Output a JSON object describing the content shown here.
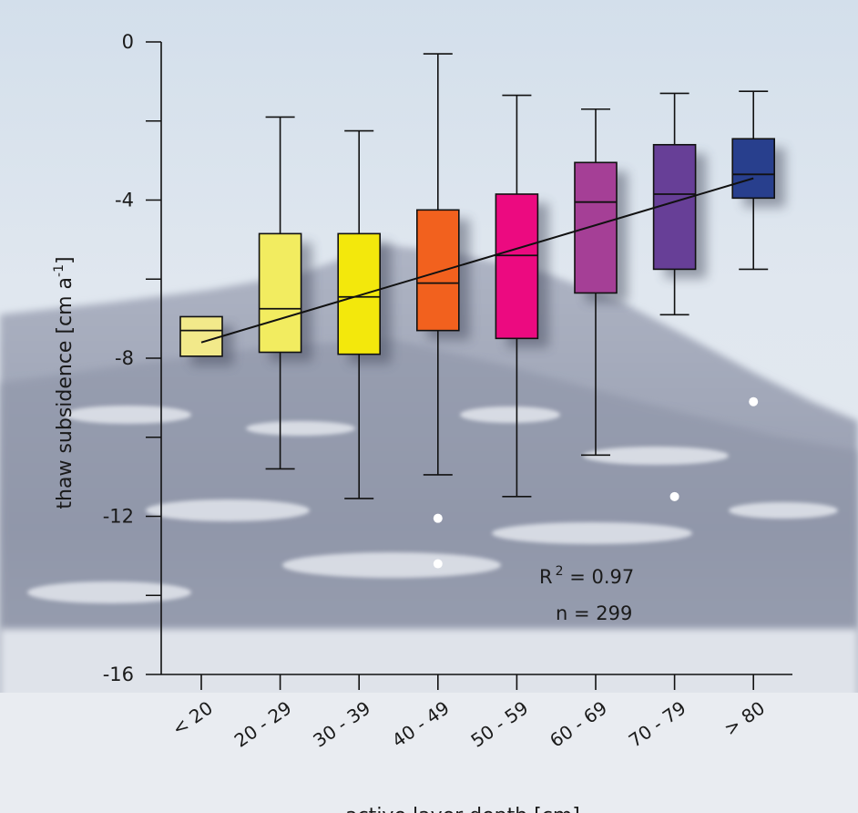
{
  "chart_data": {
    "type": "box",
    "xlabel": "active layer depth [cm]",
    "ylabel_main": "thaw subsidence [cm a",
    "ylabel_sup": "-1",
    "ylabel_end": "]",
    "ylim": [
      -16,
      0
    ],
    "yticks": [
      0,
      -4,
      -8,
      -12,
      -16
    ],
    "ytick_labels": [
      "0",
      "-4",
      "-8",
      "-12",
      "-16"
    ],
    "categories": [
      "< 20",
      "20 - 29",
      "30 - 39",
      "40 - 49",
      "50 - 59",
      "60 - 69",
      "70 - 79",
      "> 80"
    ],
    "boxes": [
      {
        "category": "< 20",
        "min": null,
        "q1": -7.95,
        "median": -7.3,
        "q3": -6.95,
        "max": null,
        "color": "#f2e98a"
      },
      {
        "category": "20 - 29",
        "min": -10.8,
        "q1": -7.85,
        "median": -6.75,
        "q3": -4.85,
        "max": -1.9,
        "color": "#f2ec60"
      },
      {
        "category": "30 - 39",
        "min": -11.55,
        "q1": -7.9,
        "median": -6.45,
        "q3": -4.85,
        "max": -2.25,
        "color": "#f3e80c"
      },
      {
        "category": "40 - 49",
        "min": -10.95,
        "q1": -7.3,
        "median": -6.1,
        "q3": -4.25,
        "max": -0.3,
        "color": "#f2611e"
      },
      {
        "category": "50 - 59",
        "min": -11.5,
        "q1": -7.5,
        "median": -5.4,
        "q3": -3.85,
        "max": -1.35,
        "color": "#ec0a80"
      },
      {
        "category": "60 - 69",
        "min": -10.45,
        "q1": -6.35,
        "median": -4.05,
        "q3": -3.05,
        "max": -1.7,
        "color": "#a53f96"
      },
      {
        "category": "70 - 79",
        "min": -6.9,
        "q1": -5.75,
        "median": -3.85,
        "q3": -2.6,
        "max": -1.3,
        "color": "#673f97"
      },
      {
        "category": "> 80",
        "min": -5.75,
        "q1": -3.95,
        "median": -3.35,
        "q3": -2.45,
        "max": -1.25,
        "color": "#283f8d"
      }
    ],
    "outliers": [
      {
        "category": "40 - 49",
        "value": -12.05
      },
      {
        "category": "40 - 49",
        "value": -13.2
      },
      {
        "category": "70 - 79",
        "value": -11.5
      },
      {
        "category": "> 80",
        "value": -9.1
      }
    ],
    "trend_line": {
      "from_category": "< 20",
      "from_value": -7.6,
      "to_category": "> 80",
      "to_value": -3.45
    },
    "stats": {
      "r2_label": "R",
      "r2_sup": "2",
      "r2_value": " = 0.97",
      "n_label": "n = 299"
    }
  }
}
